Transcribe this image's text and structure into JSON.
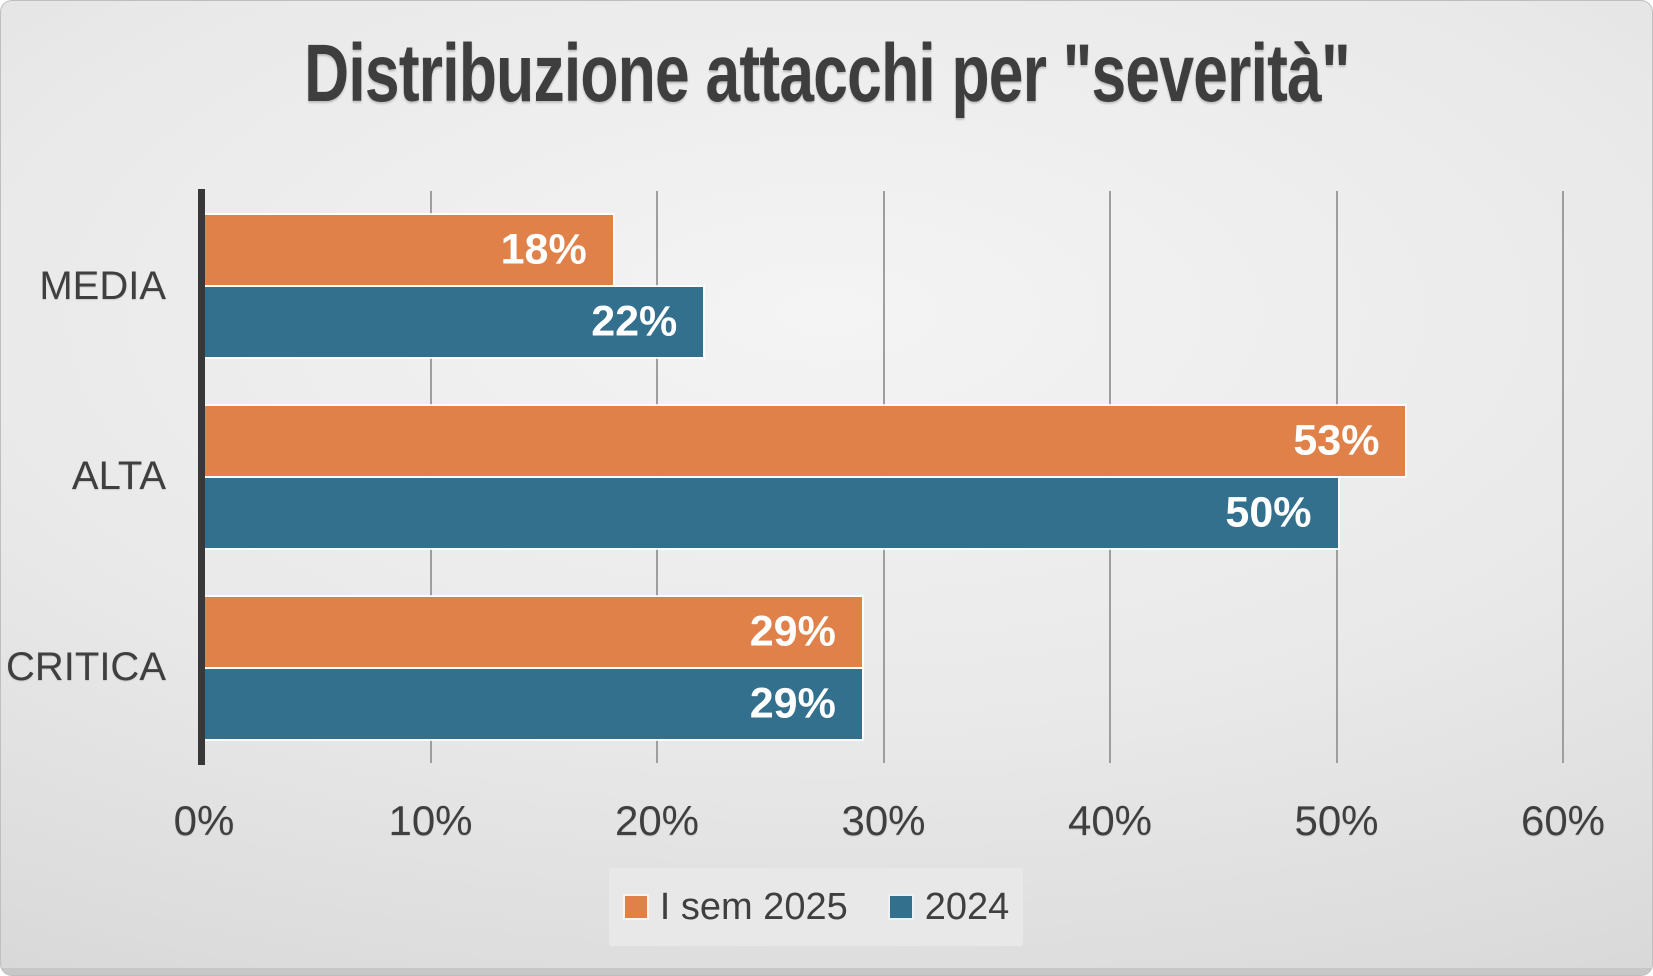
{
  "chart_data": {
    "type": "bar",
    "orientation": "horizontal",
    "title": "Distribuzione attacchi per \"severità\"",
    "categories": [
      "MEDIA",
      "ALTA",
      "CRITICA"
    ],
    "series": [
      {
        "name": "I sem 2025",
        "color": "#E0814A",
        "values": [
          18,
          53,
          29
        ]
      },
      {
        "name": "2024",
        "color": "#33708E",
        "values": [
          22,
          50,
          29
        ]
      }
    ],
    "value_suffix": "%",
    "data_labels": [
      [
        "18%",
        "53%",
        "29%"
      ],
      [
        "22%",
        "50%",
        "29%"
      ]
    ],
    "x_ticks": [
      "0%",
      "10%",
      "20%",
      "30%",
      "40%",
      "50%",
      "60%"
    ],
    "xlim": [
      0,
      60
    ],
    "grid": true,
    "legend_position": "bottom",
    "colors": {
      "title_text": "#3E3E3E",
      "axis_text": "#3F3F3F",
      "data_label_text": "#FFFFFF",
      "axis_line": "#383838",
      "gridline": "#9E9E9E",
      "legend_background": "#E8E8E8"
    }
  }
}
